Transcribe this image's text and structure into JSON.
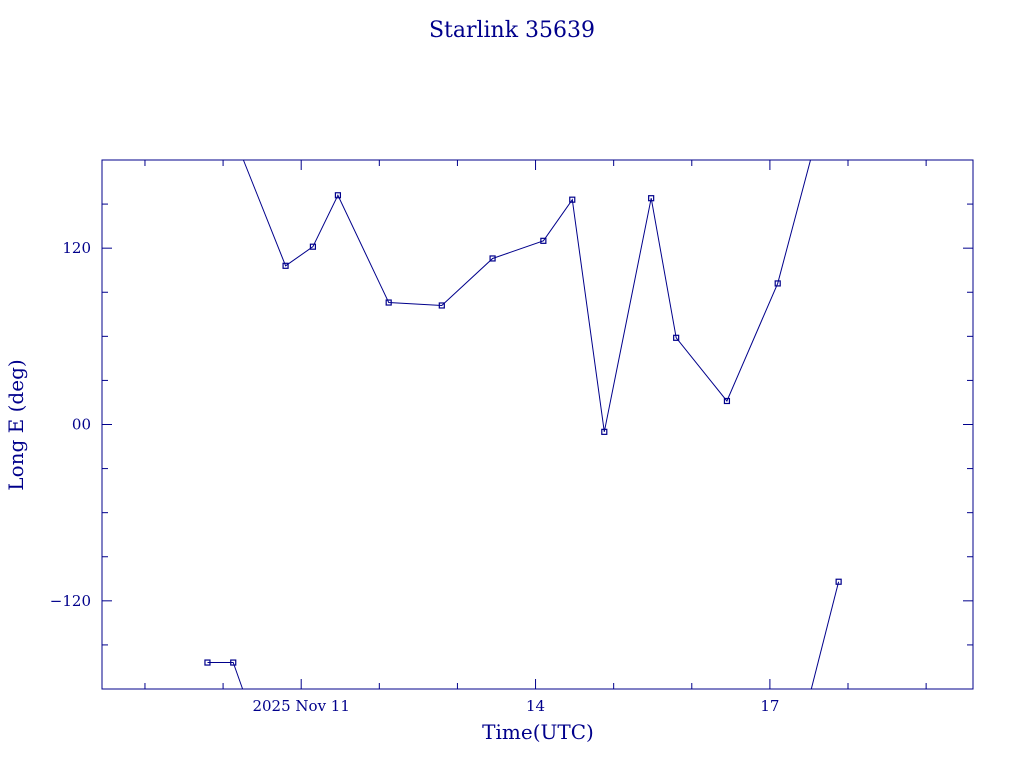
{
  "chart_data": {
    "type": "line",
    "title": "Starlink 35639",
    "xlabel": "Time(UTC)",
    "ylabel": "Long E (deg)",
    "color": "#00008b",
    "x_unit": "days",
    "xlim": [
      8.45,
      19.6
    ],
    "ylim": [
      -180,
      180
    ],
    "x_ticks": [
      {
        "value": 11,
        "label": "2025 Nov 11"
      },
      {
        "value": 14,
        "label": "14"
      },
      {
        "value": 17,
        "label": "17"
      }
    ],
    "y_ticks": [
      {
        "value": 120,
        "label": "120"
      },
      {
        "value": 0,
        "label": "00"
      },
      {
        "value": -120,
        "label": "−120"
      }
    ],
    "grid": false,
    "series": [
      {
        "name": "",
        "points": [
          {
            "x": 9.8,
            "y": -162
          },
          {
            "x": 10.13,
            "y": -162
          },
          {
            "x": 10.25,
            "y": -180,
            "marker": false
          },
          {
            "x": 10.26,
            "y": 180,
            "marker": false
          },
          {
            "x": 10.8,
            "y": 108
          },
          {
            "x": 11.15,
            "y": 121
          },
          {
            "x": 11.47,
            "y": 156
          },
          {
            "x": 12.12,
            "y": 83
          },
          {
            "x": 12.8,
            "y": 81
          },
          {
            "x": 13.45,
            "y": 113
          },
          {
            "x": 14.1,
            "y": 125
          },
          {
            "x": 14.47,
            "y": 153
          },
          {
            "x": 14.88,
            "y": -5
          },
          {
            "x": 15.48,
            "y": 154
          },
          {
            "x": 15.8,
            "y": 59
          },
          {
            "x": 16.45,
            "y": 16
          },
          {
            "x": 17.1,
            "y": 96
          },
          {
            "x": 17.52,
            "y": 180,
            "marker": false
          },
          {
            "x": 17.53,
            "y": -180,
            "marker": false
          },
          {
            "x": 17.88,
            "y": -107
          }
        ]
      }
    ]
  }
}
